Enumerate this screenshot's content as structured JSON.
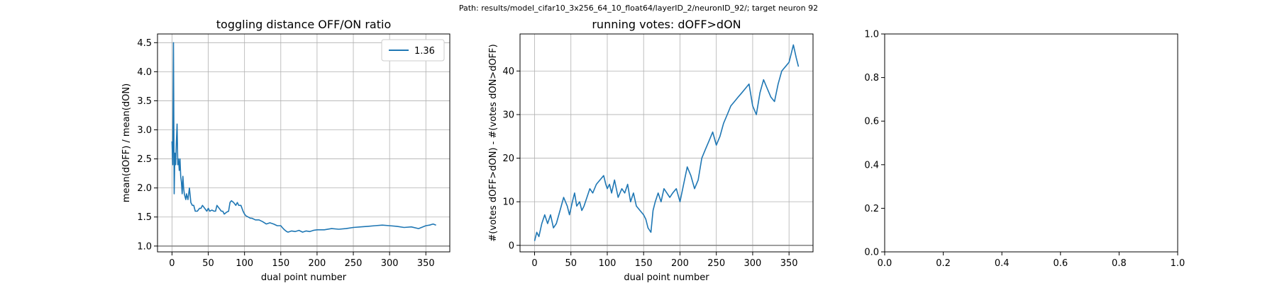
{
  "suptitle": "Path: results/model_cifar10_3x256_64_10_float64/layerID_2/neuronID_92/; target neuron 92",
  "colors": {
    "line": "#1f77b4",
    "grid": "#b0b0b0",
    "refline": "#808080",
    "axis": "#000000"
  },
  "chart_data": [
    {
      "type": "line",
      "title": "toggling distance OFF/ON ratio",
      "xlabel": "dual point number",
      "ylabel": "mean(dOFF) / mean(dON)",
      "xlim": [
        -20,
        383
      ],
      "ylim": [
        0.9,
        4.65
      ],
      "xticks": [
        0,
        50,
        100,
        150,
        200,
        250,
        300,
        350
      ],
      "yticks": [
        1.0,
        1.5,
        2.0,
        2.5,
        3.0,
        3.5,
        4.0,
        4.5
      ],
      "ytick_labels": [
        "1.0",
        "1.5",
        "2.0",
        "2.5",
        "3.0",
        "3.5",
        "4.0",
        "4.5"
      ],
      "grid": true,
      "legend": {
        "location": "top-right",
        "entries": [
          "1.36"
        ]
      },
      "reference_line": 1.0,
      "series": [
        {
          "name": "1.36",
          "x": [
            0,
            1,
            2,
            3,
            4,
            5,
            6,
            7,
            8,
            9,
            10,
            11,
            12,
            13,
            14,
            15,
            16,
            17,
            18,
            19,
            20,
            22,
            24,
            26,
            28,
            30,
            32,
            35,
            38,
            40,
            42,
            45,
            48,
            50,
            52,
            55,
            58,
            60,
            62,
            65,
            68,
            70,
            72,
            75,
            78,
            80,
            82,
            85,
            88,
            90,
            92,
            95,
            98,
            100,
            102,
            105,
            108,
            110,
            115,
            120,
            125,
            130,
            135,
            140,
            145,
            150,
            152,
            155,
            158,
            160,
            165,
            170,
            175,
            180,
            185,
            190,
            195,
            200,
            210,
            220,
            230,
            240,
            250,
            260,
            270,
            280,
            290,
            300,
            310,
            320,
            330,
            340,
            350,
            355,
            360,
            364
          ],
          "y": [
            2.8,
            2.4,
            4.5,
            1.9,
            2.6,
            2.4,
            2.8,
            3.1,
            2.4,
            2.5,
            2.3,
            2.5,
            2.2,
            2.1,
            1.9,
            2.2,
            2.0,
            1.9,
            1.85,
            1.8,
            1.9,
            1.8,
            2.0,
            1.75,
            1.7,
            1.7,
            1.6,
            1.6,
            1.65,
            1.65,
            1.7,
            1.65,
            1.6,
            1.65,
            1.6,
            1.62,
            1.6,
            1.6,
            1.7,
            1.65,
            1.6,
            1.6,
            1.55,
            1.58,
            1.6,
            1.75,
            1.78,
            1.75,
            1.7,
            1.75,
            1.7,
            1.7,
            1.6,
            1.55,
            1.52,
            1.5,
            1.48,
            1.48,
            1.45,
            1.45,
            1.42,
            1.38,
            1.4,
            1.38,
            1.35,
            1.35,
            1.32,
            1.28,
            1.25,
            1.24,
            1.26,
            1.25,
            1.27,
            1.24,
            1.26,
            1.25,
            1.27,
            1.28,
            1.28,
            1.3,
            1.29,
            1.3,
            1.32,
            1.33,
            1.34,
            1.35,
            1.36,
            1.35,
            1.34,
            1.32,
            1.33,
            1.3,
            1.35,
            1.36,
            1.38,
            1.36
          ]
        }
      ]
    },
    {
      "type": "line",
      "title": "running votes: dOFF>dON",
      "xlabel": "dual point number",
      "ylabel": "#(votes dOFF>dON) - #(votes dON>dOFF)",
      "xlim": [
        -20,
        383
      ],
      "ylim": [
        -1.5,
        48.5
      ],
      "xticks": [
        0,
        50,
        100,
        150,
        200,
        250,
        300,
        350
      ],
      "yticks": [
        0,
        10,
        20,
        30,
        40
      ],
      "ytick_labels": [
        "0",
        "10",
        "20",
        "30",
        "40"
      ],
      "grid": true,
      "reference_line": 0,
      "series": [
        {
          "x": [
            0,
            3,
            6,
            10,
            14,
            18,
            22,
            26,
            30,
            35,
            40,
            45,
            48,
            52,
            55,
            58,
            62,
            65,
            68,
            72,
            76,
            80,
            85,
            90,
            95,
            98,
            100,
            103,
            106,
            110,
            115,
            120,
            124,
            128,
            132,
            136,
            140,
            145,
            150,
            153,
            156,
            160,
            163,
            166,
            170,
            174,
            178,
            182,
            186,
            190,
            195,
            200,
            205,
            210,
            215,
            220,
            225,
            230,
            235,
            240,
            245,
            250,
            255,
            260,
            265,
            270,
            275,
            280,
            285,
            290,
            295,
            300,
            305,
            310,
            315,
            320,
            325,
            330,
            335,
            340,
            345,
            350,
            353,
            356,
            360,
            363
          ],
          "y": [
            1,
            3,
            2,
            5,
            7,
            5,
            7,
            4,
            5,
            8,
            11,
            9,
            7,
            10,
            12,
            9,
            10,
            8,
            9,
            11,
            13,
            12,
            14,
            15,
            16,
            14,
            13,
            14,
            12,
            15,
            11,
            13,
            12,
            14,
            10,
            12,
            9,
            8,
            7,
            6,
            4,
            3,
            8,
            10,
            12,
            10,
            13,
            12,
            11,
            12,
            13,
            10,
            14,
            18,
            16,
            13,
            15,
            20,
            22,
            24,
            26,
            23,
            25,
            28,
            30,
            32,
            33,
            34,
            35,
            36,
            37,
            32,
            30,
            35,
            38,
            36,
            34,
            33,
            37,
            40,
            41,
            42,
            44,
            46,
            43,
            41
          ]
        }
      ]
    },
    {
      "type": "line",
      "xlim": [
        0,
        1
      ],
      "ylim": [
        0,
        1
      ],
      "xticks": [
        0,
        0.2,
        0.4,
        0.6,
        0.8,
        1.0
      ],
      "yticks": [
        0,
        0.2,
        0.4,
        0.6,
        0.8,
        1.0
      ],
      "xtick_labels": [
        "0.0",
        "0.2",
        "0.4",
        "0.6",
        "0.8",
        "1.0"
      ],
      "ytick_labels": [
        "0.0",
        "0.2",
        "0.4",
        "0.6",
        "0.8",
        "1.0"
      ],
      "grid": false,
      "series": []
    }
  ]
}
